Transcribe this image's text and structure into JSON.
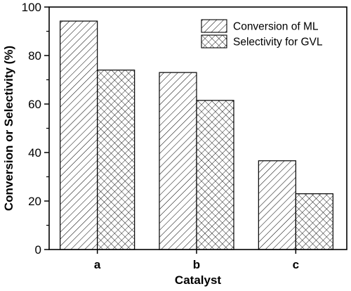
{
  "chart_data": {
    "type": "bar",
    "categories": [
      "a",
      "b",
      "c"
    ],
    "series": [
      {
        "name": "Conversion of ML",
        "values": [
          94.2,
          73.0,
          36.6
        ],
        "pattern": "diagonal-hatch"
      },
      {
        "name": "Selectivity for GVL",
        "values": [
          74.0,
          61.5,
          23.0
        ],
        "pattern": "cross-hatch"
      }
    ],
    "xlabel": "Catalyst",
    "ylabel": "Conversion or Selectivity (%)",
    "ylim": [
      0,
      100
    ],
    "yticks": [
      0,
      20,
      40,
      60,
      80,
      100
    ],
    "grid": false,
    "legend_position": "top-right",
    "colors": {
      "bar_stroke": "#000000",
      "pattern_stroke": "#000000",
      "background": "#ffffff"
    }
  }
}
